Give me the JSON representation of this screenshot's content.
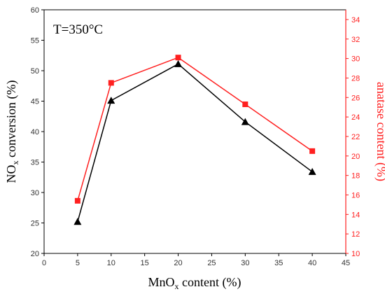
{
  "chart_data": {
    "type": "line",
    "annotation": "T=350°C",
    "xlabel": {
      "main": "MnO",
      "sub": "x",
      "rest": " content (%)"
    },
    "ylabel_left": {
      "main": "NO",
      "sub": "x",
      "rest": " conversion (%)"
    },
    "ylabel_right": "anatase content (%)",
    "xlim": [
      0,
      45
    ],
    "ylim_left": [
      20,
      60
    ],
    "ylim_right": [
      10,
      35
    ],
    "x_ticks": [
      0,
      5,
      10,
      15,
      20,
      25,
      30,
      35,
      40,
      45
    ],
    "y_left_ticks": [
      20,
      25,
      30,
      35,
      40,
      45,
      50,
      55,
      60
    ],
    "y_right_ticks": [
      10,
      12,
      14,
      16,
      18,
      20,
      22,
      24,
      26,
      28,
      30,
      32,
      34
    ],
    "series": [
      {
        "axis": "left",
        "marker": "triangle",
        "color": "#000000",
        "x": [
          5,
          10,
          20,
          30,
          40
        ],
        "values": [
          25.2,
          45.1,
          51.1,
          41.6,
          33.4
        ]
      },
      {
        "axis": "right",
        "marker": "square",
        "color": "#ff2020",
        "x": [
          5,
          10,
          20,
          30,
          40
        ],
        "values": [
          15.4,
          27.5,
          30.1,
          25.3,
          20.5
        ]
      }
    ]
  }
}
